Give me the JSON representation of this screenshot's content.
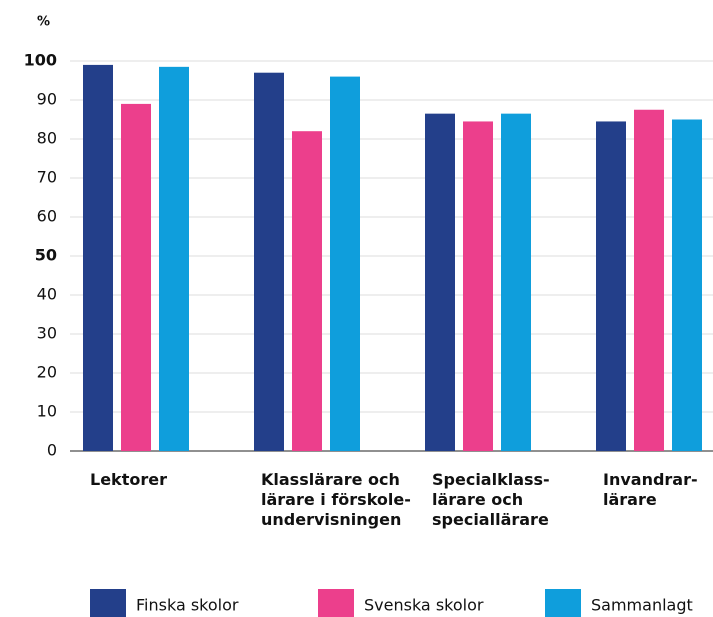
{
  "chart_data": {
    "type": "bar",
    "y_label": "%",
    "categories": [
      "Lektorer",
      "Klasslärare och\nlärare i förskole-\nundervisningen",
      "Specialklass-\nlärare och\nspeciallärare",
      "Invandrar-\nlärare"
    ],
    "series": [
      {
        "name": "Finska skolor",
        "color": "#233f8a",
        "values": [
          99,
          97,
          86.5,
          84.5
        ]
      },
      {
        "name": "Svenska skolor",
        "color": "#ec3f8c",
        "values": [
          89,
          82,
          84.5,
          87.5
        ]
      },
      {
        "name": "Sammanlagt",
        "color": "#0f9edc",
        "values": [
          98.5,
          96,
          86.5,
          85
        ]
      }
    ],
    "ylim": [
      0,
      100
    ],
    "yticks": [
      0,
      10,
      20,
      30,
      40,
      50,
      60,
      70,
      80,
      90,
      100
    ],
    "emphasized_yticks": [
      50,
      100
    ],
    "grid": true,
    "legend": "bottom"
  }
}
